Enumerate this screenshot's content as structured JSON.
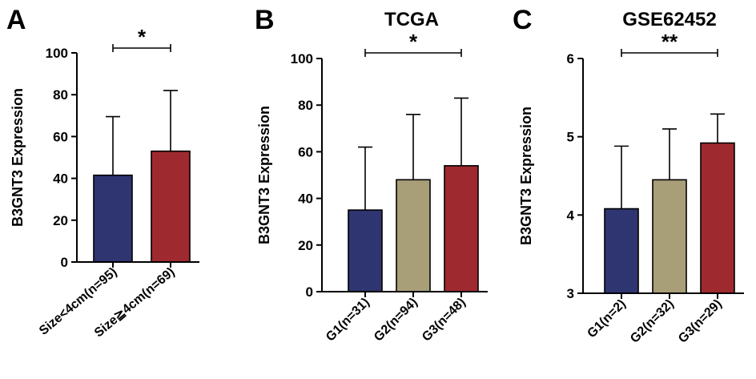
{
  "chart_data": [
    {
      "panel": "A",
      "type": "bar",
      "title": "",
      "ylabel": "B3GNT3 Expression",
      "xlabel": "",
      "categories": [
        "Size<4cm(n=95)",
        "Size≧4cm(n=69)"
      ],
      "values": [
        41.5,
        53
      ],
      "errors": [
        28,
        29
      ],
      "colors": [
        "#2f3570",
        "#9e2a2f"
      ],
      "ylim": [
        0,
        100
      ],
      "yticks": [
        0,
        20,
        40,
        60,
        80,
        100
      ],
      "significance": [
        {
          "from": 0,
          "to": 1,
          "label": "*"
        }
      ]
    },
    {
      "panel": "B",
      "type": "bar",
      "title": "TCGA",
      "ylabel": "B3GNT3 Expression",
      "xlabel": "",
      "categories": [
        "G1(n=31)",
        "G2(n=94)",
        "G3(n=48)"
      ],
      "values": [
        35,
        48,
        54
      ],
      "errors": [
        27,
        28,
        29
      ],
      "colors": [
        "#2f3570",
        "#a89e78",
        "#9e2a2f"
      ],
      "ylim": [
        0,
        100
      ],
      "yticks": [
        0,
        20,
        40,
        60,
        80,
        100
      ],
      "significance": [
        {
          "from": 0,
          "to": 2,
          "label": "*"
        }
      ]
    },
    {
      "panel": "C",
      "type": "bar",
      "title": "GSE62452",
      "ylabel": "B3GNT3 Expression",
      "xlabel": "",
      "categories": [
        "G1(n=2)",
        "G2(n=32)",
        "G3(n=29)"
      ],
      "values": [
        4.08,
        4.45,
        4.92
      ],
      "errors": [
        0.8,
        0.65,
        0.37
      ],
      "colors": [
        "#2f3570",
        "#a89e78",
        "#9e2a2f"
      ],
      "ylim": [
        3,
        6
      ],
      "yticks": [
        3,
        4,
        5,
        6
      ],
      "significance": [
        {
          "from": 0,
          "to": 2,
          "label": "**"
        }
      ]
    }
  ]
}
